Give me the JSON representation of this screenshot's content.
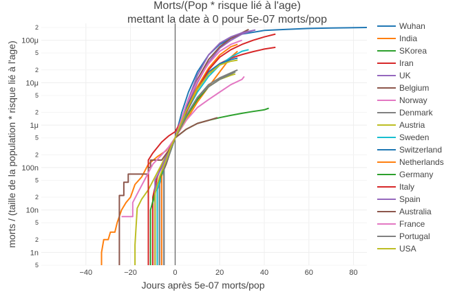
{
  "chart_data": {
    "type": "line",
    "title": "Morts/(Pop * risque lié à l'age)",
    "subtitle": "mettant la date à 0 pour 5e-07 morts/pop",
    "xlabel": "Jours après 5e-07 morts/pop",
    "ylabel": "morts / (taille de la population * risque lié à l'age)",
    "xlim": [
      -60,
      86
    ],
    "ylim": [
      5e-10,
      0.00025
    ],
    "yscale": "log",
    "grid": true,
    "legend_position": "right",
    "x_ticks": [
      {
        "value": -40,
        "label": "−40"
      },
      {
        "value": -20,
        "label": "−20"
      },
      {
        "value": 0,
        "label": "0"
      },
      {
        "value": 20,
        "label": "20"
      },
      {
        "value": 40,
        "label": "40"
      },
      {
        "value": 60,
        "label": "60"
      },
      {
        "value": 80,
        "label": "80"
      }
    ],
    "y_major_ticks": [
      {
        "value": 1e-09,
        "label": "1n"
      },
      {
        "value": 1e-08,
        "label": "10n"
      },
      {
        "value": 1e-07,
        "label": "100n"
      },
      {
        "value": 1e-06,
        "label": "1μ"
      },
      {
        "value": 1e-05,
        "label": "10μ"
      },
      {
        "value": 0.0001,
        "label": "100μ"
      }
    ],
    "y_minor_ticks": [
      {
        "value": 5e-10,
        "label": "5"
      },
      {
        "value": 2e-09,
        "label": "2"
      },
      {
        "value": 5e-09,
        "label": "5"
      },
      {
        "value": 2e-08,
        "label": "2"
      },
      {
        "value": 5e-08,
        "label": "5"
      },
      {
        "value": 2e-07,
        "label": "2"
      },
      {
        "value": 5e-07,
        "label": "5"
      },
      {
        "value": 2e-06,
        "label": "2"
      },
      {
        "value": 5e-06,
        "label": "5"
      },
      {
        "value": 2e-05,
        "label": "2"
      },
      {
        "value": 5e-05,
        "label": "5"
      },
      {
        "value": 0.0002,
        "label": "2"
      }
    ],
    "series": [
      {
        "name": "Wuhan",
        "color": "#1f77b4",
        "points": [
          [
            -3,
            2e-07
          ],
          [
            0,
            5e-07
          ],
          [
            3,
            2e-06
          ],
          [
            6,
            6e-06
          ],
          [
            10,
            1.8e-05
          ],
          [
            15,
            4.5e-05
          ],
          [
            20,
            8e-05
          ],
          [
            25,
            0.00011
          ],
          [
            30,
            0.00014
          ],
          [
            40,
            0.00017
          ],
          [
            50,
            0.00018
          ],
          [
            60,
            0.00019
          ],
          [
            70,
            0.000195
          ],
          [
            86,
            0.0002
          ]
        ]
      },
      {
        "name": "India",
        "color": "#ff7f0e",
        "points": [
          [
            -33,
            5e-10
          ],
          [
            -33,
            1e-09
          ],
          [
            -32,
            2e-09
          ],
          [
            -30,
            2e-09
          ],
          [
            -29,
            3e-09
          ],
          [
            -27,
            3e-09
          ],
          [
            -26,
            5e-09
          ],
          [
            -24,
            1e-08
          ],
          [
            -22,
            1.5e-08
          ],
          [
            -20,
            2e-08
          ],
          [
            -18,
            4e-08
          ],
          [
            -15,
            6e-08
          ],
          [
            -12,
            1.2e-07
          ],
          [
            -8,
            1.8e-07
          ],
          [
            -4,
            2.5e-07
          ],
          [
            0,
            5e-07
          ],
          [
            5,
            1.3e-06
          ],
          [
            10,
            3.5e-06
          ],
          [
            15,
            8e-06
          ],
          [
            20,
            1.8e-05
          ],
          [
            25,
            4e-05
          ],
          [
            28,
            5.5e-05
          ]
        ]
      },
      {
        "name": "SKorea",
        "color": "#2ca02c",
        "points": [
          [
            -10,
            5e-10
          ],
          [
            -10,
            1.5e-08
          ],
          [
            -8,
            4e-08
          ],
          [
            -5,
            1e-07
          ],
          [
            -2,
            2.5e-07
          ],
          [
            0,
            5e-07
          ],
          [
            5,
            8e-07
          ],
          [
            10,
            1.1e-06
          ],
          [
            15,
            1.3e-06
          ],
          [
            20,
            1.5e-06
          ],
          [
            25,
            1.7e-06
          ],
          [
            30,
            1.9e-06
          ],
          [
            35,
            2.1e-06
          ],
          [
            40,
            2.3e-06
          ],
          [
            42,
            2.5e-06
          ]
        ]
      },
      {
        "name": "Iran",
        "color": "#d62728",
        "points": [
          [
            -10,
            5e-10
          ],
          [
            -10,
            2e-08
          ],
          [
            -8,
            6e-08
          ],
          [
            -5,
            1.5e-07
          ],
          [
            -2,
            3e-07
          ],
          [
            0,
            5e-07
          ],
          [
            5,
            2e-06
          ],
          [
            10,
            7e-06
          ],
          [
            15,
            1.6e-05
          ],
          [
            20,
            2.8e-05
          ],
          [
            25,
            3.8e-05
          ],
          [
            30,
            4.6e-05
          ],
          [
            35,
            5.4e-05
          ],
          [
            40,
            6.2e-05
          ],
          [
            45,
            6.8e-05
          ]
        ]
      },
      {
        "name": "UK",
        "color": "#9467bd",
        "points": [
          [
            -9,
            5e-10
          ],
          [
            -9,
            3e-08
          ],
          [
            -6,
            8e-08
          ],
          [
            -3,
            2e-07
          ],
          [
            0,
            5e-07
          ],
          [
            5,
            2.5e-06
          ],
          [
            10,
            1e-05
          ],
          [
            15,
            3e-05
          ],
          [
            20,
            6.5e-05
          ],
          [
            25,
            0.0001
          ],
          [
            30,
            0.00014
          ],
          [
            35,
            0.00017
          ]
        ]
      },
      {
        "name": "Belgium",
        "color": "#8c564b",
        "points": [
          [
            -7,
            5e-10
          ],
          [
            -7,
            5e-08
          ],
          [
            -4,
            1.2e-07
          ],
          [
            -2,
            2.5e-07
          ],
          [
            0,
            5e-07
          ],
          [
            5,
            2.8e-06
          ],
          [
            10,
            1.2e-05
          ],
          [
            15,
            3.5e-05
          ],
          [
            20,
            7e-05
          ],
          [
            25,
            0.00011
          ],
          [
            30,
            0.00015
          ],
          [
            33,
            0.00018
          ]
        ]
      },
      {
        "name": "Norway",
        "color": "#e377c2",
        "points": [
          [
            -6,
            5e-10
          ],
          [
            -6,
            7e-08
          ],
          [
            -3,
            2e-07
          ],
          [
            0,
            5e-07
          ],
          [
            5,
            1.3e-06
          ],
          [
            10,
            2.6e-06
          ],
          [
            15,
            4e-06
          ],
          [
            20,
            6e-06
          ],
          [
            25,
            9e-06
          ],
          [
            30,
            1.2e-05
          ],
          [
            31,
            1.4e-05
          ]
        ]
      },
      {
        "name": "Denmark",
        "color": "#7f7f7f",
        "points": [
          [
            -7,
            5e-10
          ],
          [
            -7,
            4e-08
          ],
          [
            -4,
            1.5e-07
          ],
          [
            -2,
            3e-07
          ],
          [
            0,
            5e-07
          ],
          [
            5,
            1.6e-06
          ],
          [
            10,
            4.5e-06
          ],
          [
            15,
            9e-06
          ],
          [
            20,
            1.3e-05
          ],
          [
            25,
            1.7e-05
          ],
          [
            28,
            2e-05
          ]
        ]
      },
      {
        "name": "Austria",
        "color": "#bcbd22",
        "points": [
          [
            -18,
            5e-10
          ],
          [
            -18,
            1.5e-09
          ],
          [
            -17,
            1.1e-08
          ],
          [
            -15,
            1.8e-08
          ],
          [
            -12,
            3e-08
          ],
          [
            -9,
            6e-08
          ],
          [
            -6,
            1.2e-07
          ],
          [
            -3,
            2.5e-07
          ],
          [
            0,
            5e-07
          ],
          [
            5,
            1.5e-06
          ],
          [
            10,
            4e-06
          ],
          [
            15,
            8e-06
          ],
          [
            20,
            1.2e-05
          ],
          [
            25,
            1.5e-05
          ],
          [
            27,
            1.6e-05
          ]
        ]
      },
      {
        "name": "Sweden",
        "color": "#17becf",
        "points": [
          [
            -8,
            5e-10
          ],
          [
            -8,
            3e-08
          ],
          [
            -5,
            1e-07
          ],
          [
            -2,
            2.5e-07
          ],
          [
            0,
            5e-07
          ],
          [
            5,
            2e-06
          ],
          [
            10,
            6e-06
          ],
          [
            15,
            1.4e-05
          ],
          [
            20,
            2.6e-05
          ],
          [
            25,
            4e-05
          ],
          [
            30,
            5.5e-05
          ],
          [
            33,
            6e-05
          ]
        ]
      },
      {
        "name": "Switzerland",
        "color": "#1f77b4",
        "points": [
          [
            -5,
            5e-10
          ],
          [
            -5,
            1e-07
          ],
          [
            -2,
            2.5e-07
          ],
          [
            0,
            5e-07
          ],
          [
            5,
            2.5e-06
          ],
          [
            10,
            8e-06
          ],
          [
            15,
            1.8e-05
          ],
          [
            20,
            2.8e-05
          ],
          [
            25,
            3.5e-05
          ],
          [
            28,
            3.8e-05
          ]
        ]
      },
      {
        "name": "Netherlands",
        "color": "#ff7f0e",
        "points": [
          [
            -6,
            5e-10
          ],
          [
            -6,
            8e-08
          ],
          [
            -3,
            2e-07
          ],
          [
            0,
            5e-07
          ],
          [
            5,
            2.2e-06
          ],
          [
            10,
            8e-06
          ],
          [
            15,
            2.2e-05
          ],
          [
            20,
            4.5e-05
          ],
          [
            25,
            7e-05
          ],
          [
            28,
            8e-05
          ]
        ]
      },
      {
        "name": "Germany",
        "color": "#2ca02c",
        "points": [
          [
            -11,
            5e-10
          ],
          [
            -11,
            1e-08
          ],
          [
            -8,
            4e-08
          ],
          [
            -5,
            1e-07
          ],
          [
            -2,
            2.5e-07
          ],
          [
            0,
            5e-07
          ],
          [
            5,
            1.6e-06
          ],
          [
            10,
            4e-06
          ],
          [
            15,
            8e-06
          ],
          [
            20,
            1.2e-05
          ],
          [
            25,
            1.6e-05
          ],
          [
            27,
            1.8e-05
          ]
        ]
      },
      {
        "name": "Italy",
        "color": "#d62728",
        "points": [
          [
            -12,
            5e-10
          ],
          [
            -12,
            1.5e-07
          ],
          [
            -10,
            2.2e-07
          ],
          [
            -6,
            4e-07
          ],
          [
            -3,
            5.5e-07
          ],
          [
            0,
            7e-07
          ],
          [
            5,
            2e-06
          ],
          [
            10,
            7e-06
          ],
          [
            15,
            2e-05
          ],
          [
            20,
            4e-05
          ],
          [
            25,
            6e-05
          ],
          [
            30,
            8e-05
          ],
          [
            35,
            0.0001
          ],
          [
            40,
            0.00012
          ],
          [
            45,
            0.00014
          ]
        ]
      },
      {
        "name": "Spain",
        "color": "#9467bd",
        "points": [
          [
            -9,
            5e-10
          ],
          [
            -9,
            5e-08
          ],
          [
            -6,
            1e-07
          ],
          [
            -3,
            2.5e-07
          ],
          [
            0,
            5e-07
          ],
          [
            5,
            3e-06
          ],
          [
            10,
            1.5e-05
          ],
          [
            15,
            4.5e-05
          ],
          [
            20,
            8.5e-05
          ],
          [
            25,
            0.00012
          ],
          [
            30,
            0.00015
          ],
          [
            36,
            0.000175
          ]
        ]
      },
      {
        "name": "Australia",
        "color": "#8c564b",
        "points": [
          [
            -25,
            5e-10
          ],
          [
            -25,
            2.2e-08
          ],
          [
            -23,
            2.2e-08
          ],
          [
            -23,
            4.5e-08
          ],
          [
            -21,
            4.5e-08
          ],
          [
            -21,
            7e-08
          ],
          [
            -18,
            7e-08
          ],
          [
            -12,
            7e-08
          ],
          [
            -12,
            1e-07
          ],
          [
            -11,
            1e-07
          ],
          [
            -11,
            1.5e-07
          ],
          [
            -6,
            1.5e-07
          ],
          [
            -3,
            2.5e-07
          ],
          [
            0,
            5e-07
          ],
          [
            5,
            8e-07
          ],
          [
            10,
            1.1e-06
          ],
          [
            15,
            1.3e-06
          ],
          [
            19,
            1.5e-06
          ]
        ]
      },
      {
        "name": "France",
        "color": "#e377c2",
        "points": [
          [
            -24,
            7e-09
          ],
          [
            -22,
            7e-09
          ],
          [
            -20,
            7e-09
          ],
          [
            -19,
            7e-09
          ],
          [
            -19,
            1.5e-08
          ],
          [
            -16,
            3e-08
          ],
          [
            -13,
            6e-08
          ],
          [
            -10,
            1.2e-07
          ],
          [
            -6,
            2e-07
          ],
          [
            -3,
            3e-07
          ],
          [
            0,
            5e-07
          ],
          [
            5,
            3e-06
          ],
          [
            10,
            1.1e-05
          ],
          [
            15,
            2.8e-05
          ],
          [
            20,
            5.5e-05
          ],
          [
            25,
            8e-05
          ],
          [
            30,
            0.0001
          ]
        ]
      },
      {
        "name": "Portugal",
        "color": "#7f7f7f",
        "points": [
          [
            -5,
            5e-10
          ],
          [
            -5,
            1e-07
          ],
          [
            -2,
            2.5e-07
          ],
          [
            0,
            5e-07
          ],
          [
            5,
            1.7e-06
          ],
          [
            10,
            4.5e-06
          ],
          [
            15,
            8e-06
          ],
          [
            20,
            1.2e-05
          ],
          [
            25,
            1.6e-05
          ],
          [
            27,
            1.8e-05
          ]
        ]
      },
      {
        "name": "USA",
        "color": "#bcbd22",
        "points": [
          [
            -9,
            5e-10
          ],
          [
            -9,
            2.5e-08
          ],
          [
            -7,
            6e-08
          ],
          [
            -4,
            1.5e-07
          ],
          [
            -2,
            3e-07
          ],
          [
            0,
            5e-07
          ],
          [
            5,
            2.2e-06
          ],
          [
            10,
            7e-06
          ],
          [
            15,
            1.6e-05
          ],
          [
            20,
            2.6e-05
          ],
          [
            25,
            3.2e-05
          ],
          [
            28,
            3.4e-05
          ]
        ]
      }
    ]
  }
}
